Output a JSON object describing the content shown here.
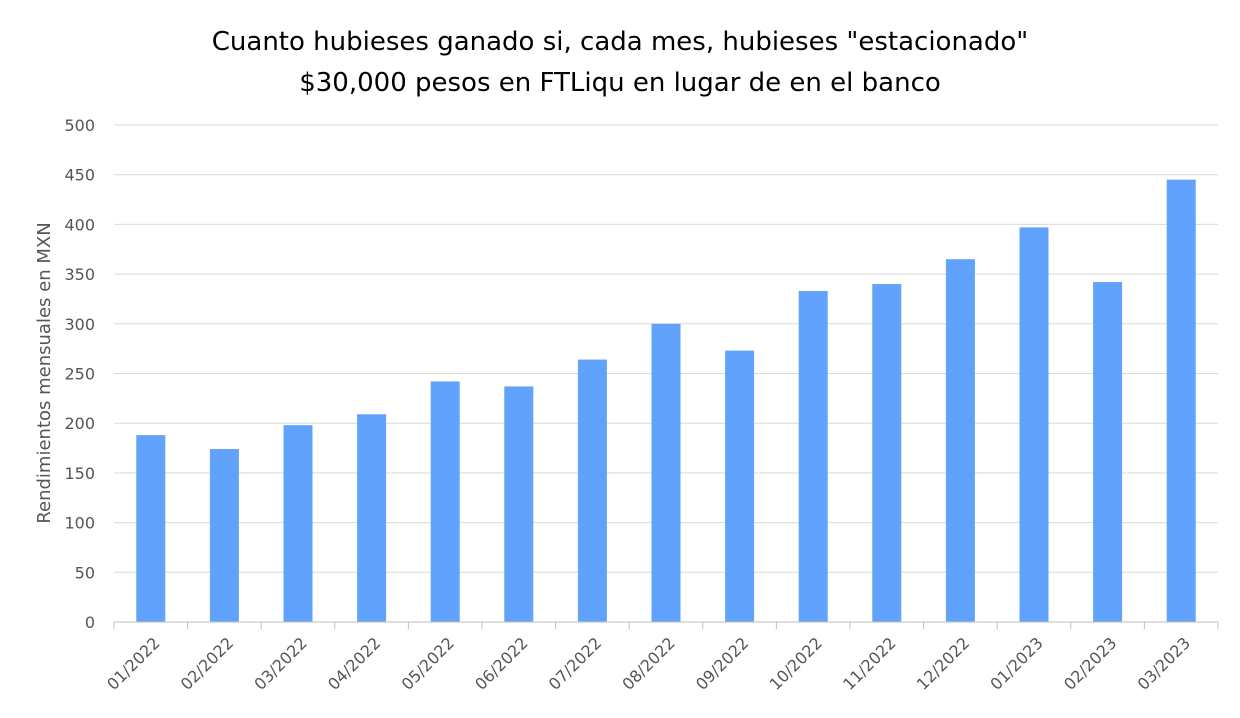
{
  "chart_data": {
    "type": "bar",
    "title": [
      "Cuanto hubieses ganado si, cada mes, hubieses \"estacionado\"",
      "$30,000 pesos en FTLiqu en lugar de en el banco"
    ],
    "xlabel": "",
    "ylabel": "Rendimientos mensuales en MXN",
    "ylim": [
      0,
      500
    ],
    "yticks": [
      0,
      50,
      100,
      150,
      200,
      250,
      300,
      350,
      400,
      450,
      500
    ],
    "categories": [
      "01/2022",
      "02/2022",
      "03/2022",
      "04/2022",
      "05/2022",
      "06/2022",
      "07/2022",
      "08/2022",
      "09/2022",
      "10/2022",
      "11/2022",
      "12/2022",
      "01/2023",
      "02/2023",
      "03/2023"
    ],
    "values": [
      188,
      174,
      198,
      209,
      242,
      237,
      264,
      300,
      273,
      333,
      340,
      365,
      397,
      342,
      445
    ],
    "bar_color": "#61a3fc",
    "grid": true,
    "legend": "none"
  }
}
